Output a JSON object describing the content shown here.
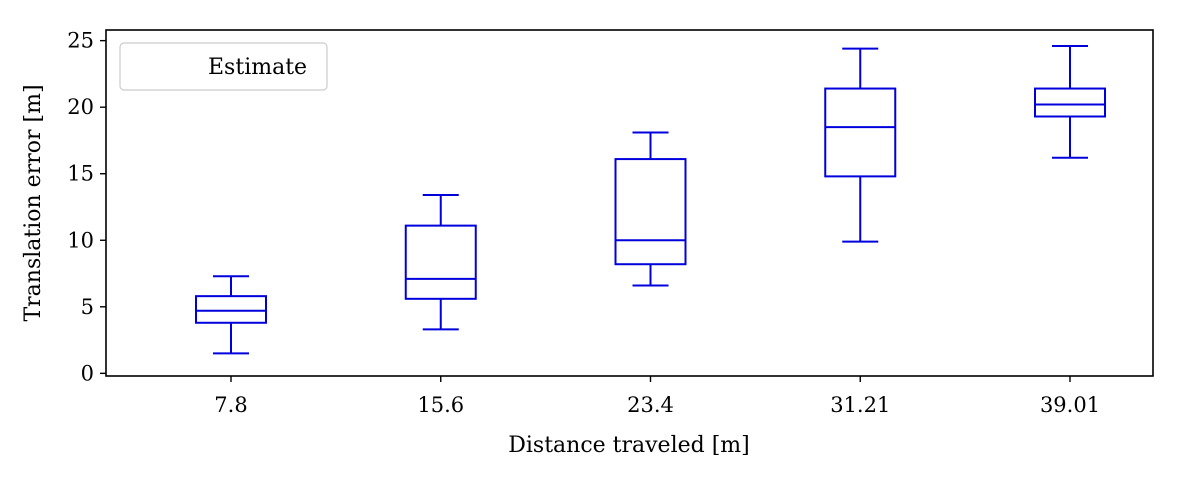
{
  "chart_data": {
    "type": "box",
    "xlabel": "Distance traveled [m]",
    "ylabel": "Translation error [m]",
    "ylim": [
      -0.2,
      25.8
    ],
    "yticks": [
      0,
      5,
      10,
      15,
      20,
      25
    ],
    "grid": false,
    "legend": {
      "placement": "top-left",
      "entries": [
        "Estimate"
      ]
    },
    "series": [
      {
        "name": "Estimate",
        "color": "#0000dd",
        "boxes": [
          {
            "category": "7.8",
            "whisker_low": 1.5,
            "q1": 3.8,
            "median": 4.7,
            "q3": 5.8,
            "whisker_high": 7.3
          },
          {
            "category": "15.6",
            "whisker_low": 3.3,
            "q1": 5.6,
            "median": 7.1,
            "q3": 11.1,
            "whisker_high": 13.4
          },
          {
            "category": "23.4",
            "whisker_low": 6.6,
            "q1": 8.2,
            "median": 10.0,
            "q3": 16.1,
            "whisker_high": 18.1
          },
          {
            "category": "31.21",
            "whisker_low": 9.9,
            "q1": 14.8,
            "median": 18.5,
            "q3": 21.4,
            "whisker_high": 24.4
          },
          {
            "category": "39.01",
            "whisker_low": 16.2,
            "q1": 19.3,
            "median": 20.2,
            "q3": 21.4,
            "whisker_high": 24.6
          }
        ]
      }
    ]
  }
}
